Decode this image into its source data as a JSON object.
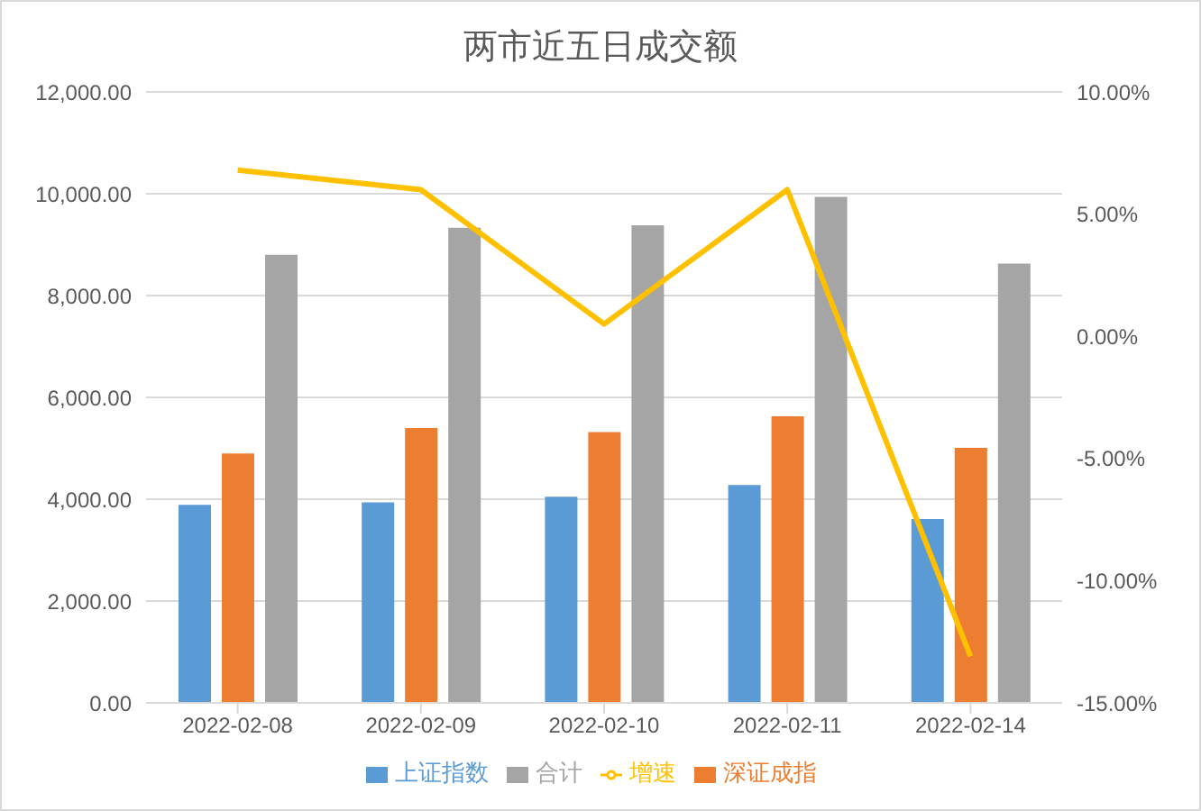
{
  "chart_data": {
    "type": "bar",
    "title": "两市近五日成交额",
    "categories": [
      "2022-02-08",
      "2022-02-09",
      "2022-02-10",
      "2022-02-11",
      "2022-02-14"
    ],
    "series": [
      {
        "name": "上证指数",
        "color": "#5b9bd5",
        "values": [
          3890,
          3940,
          4050,
          4280,
          3610
        ]
      },
      {
        "name": "深证成指",
        "color": "#ed7d31",
        "values": [
          4900,
          5400,
          5320,
          5630,
          5010
        ]
      },
      {
        "name": "合计",
        "color": "#a5a5a5",
        "values": [
          8800,
          9330,
          9380,
          9940,
          8630
        ]
      },
      {
        "name": "增速",
        "type": "line",
        "axis": "y2",
        "color": "#ffc000",
        "values": [
          6.8,
          6.0,
          0.5,
          6.0,
          -13.1
        ]
      }
    ],
    "ylim": [
      0,
      12000
    ],
    "yticks": [
      {
        "value": 0,
        "label": "0.00"
      },
      {
        "value": 2000,
        "label": "2,000.00"
      },
      {
        "value": 4000,
        "label": "4,000.00"
      },
      {
        "value": 6000,
        "label": "6,000.00"
      },
      {
        "value": 8000,
        "label": "8,000.00"
      },
      {
        "value": 10000,
        "label": "10,000.00"
      },
      {
        "value": 12000,
        "label": "12,000.00"
      }
    ],
    "y2lim": [
      -15,
      10
    ],
    "y2ticks": [
      {
        "value": -15,
        "label": "-15.00%"
      },
      {
        "value": -10,
        "label": "-10.00%"
      },
      {
        "value": -5,
        "label": "-5.00%"
      },
      {
        "value": 0,
        "label": "0.00%"
      },
      {
        "value": 5,
        "label": "5.00%"
      },
      {
        "value": 10,
        "label": "10.00%"
      }
    ],
    "grid": "y",
    "legend": "bottom",
    "marker": "none"
  }
}
